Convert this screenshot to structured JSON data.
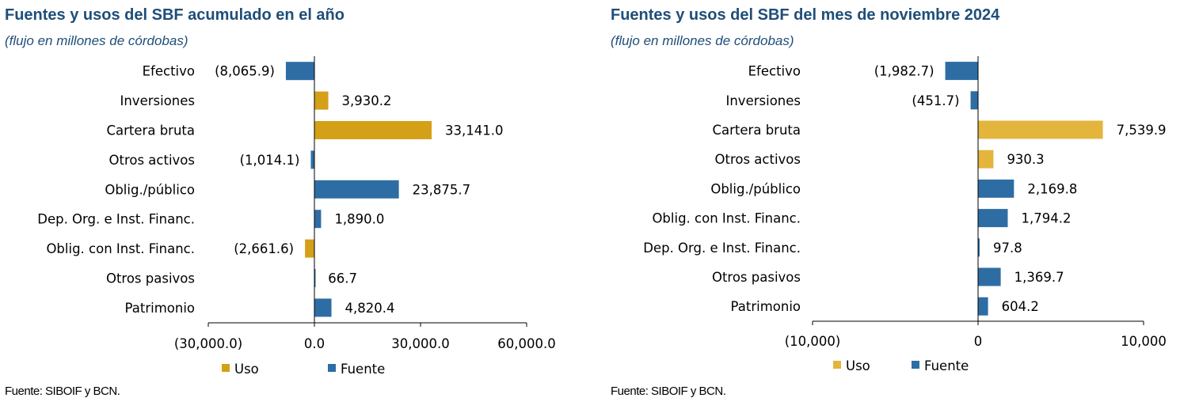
{
  "panels": [
    {
      "title": "Fuentes y usos del SBF acumulado en el año",
      "subtitle": "(flujo en millones de córdobas)",
      "source": "Fuente: SIBOIF y BCN."
    },
    {
      "title": "Fuentes y usos del SBF del mes de noviembre 2024",
      "subtitle": "(flujo en millones de córdobas)",
      "source": "Fuente: SIBOIF y BCN."
    }
  ],
  "chart_data": [
    {
      "type": "bar",
      "orientation": "horizontal",
      "title": "Fuentes y usos del SBF acumulado en el año",
      "subtitle": "(flujo en millones de córdobas)",
      "categories": [
        "Efectivo",
        "Inversiones",
        "Cartera bruta",
        "Otros activos",
        "Oblig./público",
        "Dep. Org. e Inst. Financ.",
        "Oblig. con Inst. Financ.",
        "Otros pasivos",
        "Patrimonio"
      ],
      "values": [
        -8065.9,
        3930.2,
        33141.0,
        -1014.1,
        23875.7,
        1890.0,
        -2661.6,
        66.7,
        4820.4
      ],
      "data_labels": [
        "(8,065.9)",
        "3,930.2",
        "33,141.0",
        "(1,014.1)",
        "23,875.7",
        "1,890.0",
        "(2,661.6)",
        "66.7",
        "4,820.4"
      ],
      "series_type": [
        "Fuente",
        "Uso",
        "Uso",
        "Fuente",
        "Fuente",
        "Fuente",
        "Uso",
        "Fuente",
        "Fuente"
      ],
      "xlim": [
        -30000,
        60000
      ],
      "xticks": [
        -30000,
        0,
        30000,
        60000
      ],
      "xtick_labels": [
        "(30,000.0)",
        "0.0",
        "30,000.0",
        "60,000.0"
      ],
      "legend": [
        {
          "name": "Uso",
          "color": "#d4a017"
        },
        {
          "name": "Fuente",
          "color": "#2e6da4"
        }
      ],
      "legend_position": "bottom",
      "grid": false
    },
    {
      "type": "bar",
      "orientation": "horizontal",
      "title": "Fuentes y usos del SBF del mes de noviembre 2024",
      "subtitle": "(flujo en millones de córdobas)",
      "categories": [
        "Efectivo",
        "Inversiones",
        "Cartera bruta",
        "Otros activos",
        "Oblig./público",
        "Oblig. con Inst. Financ.",
        "Dep. Org. e Inst. Financ.",
        "Otros pasivos",
        "Patrimonio"
      ],
      "values": [
        -1982.7,
        -451.7,
        7539.9,
        930.3,
        2169.8,
        1794.2,
        97.8,
        1369.7,
        604.2
      ],
      "data_labels": [
        "(1,982.7)",
        "(451.7)",
        "7,539.9",
        "930.3",
        "2,169.8",
        "1,794.2",
        "97.8",
        "1,369.7",
        "604.2"
      ],
      "series_type": [
        "Fuente",
        "Fuente",
        "Uso",
        "Uso",
        "Fuente",
        "Fuente",
        "Fuente",
        "Fuente",
        "Fuente"
      ],
      "xlim": [
        -10000,
        10000
      ],
      "xticks": [
        -10000,
        0,
        10000
      ],
      "xtick_labels": [
        "(10,000)",
        "0",
        "10,000"
      ],
      "legend": [
        {
          "name": "Uso",
          "color": "#e3b53c"
        },
        {
          "name": "Fuente",
          "color": "#2e6da4"
        }
      ],
      "legend_position": "bottom",
      "grid": false
    }
  ]
}
